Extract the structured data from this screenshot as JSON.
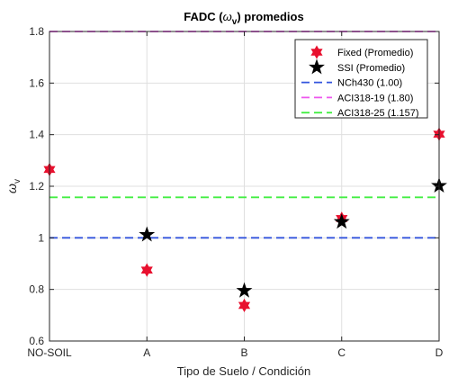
{
  "chart_data": {
    "type": "scatter",
    "title": {
      "main": "FADC (",
      "omega": "ω",
      "sub": "v",
      "tail": ") promedios"
    },
    "xlabel": "Tipo de Suelo / Condición",
    "ylabel": {
      "omega": "ω",
      "sub": "v"
    },
    "categories": [
      "NO-SOIL",
      "A",
      "B",
      "C",
      "D"
    ],
    "ylim": [
      0.6,
      1.8
    ],
    "yticks": [
      "0.6",
      "0.8",
      "1",
      "1.2",
      "1.4",
      "1.6",
      "1.8"
    ],
    "grid": true,
    "legend_position": "top-right",
    "series": [
      {
        "name": "Fixed (Promedio)",
        "marker": "hexagram",
        "color": "#e8102e",
        "values": [
          1.265,
          0.875,
          0.738,
          1.075,
          1.402
        ]
      },
      {
        "name": "SSI (Promedio)",
        "marker": "pentagram",
        "color": "#000000",
        "values": [
          null,
          1.012,
          0.795,
          1.062,
          1.202
        ]
      }
    ],
    "reference_lines": [
      {
        "name": "NCh430 (1.00)",
        "value": 1.0,
        "color": "#3355dd"
      },
      {
        "name": "ACI318-19 (1.80)",
        "value": 1.8,
        "color": "#ee55ee"
      },
      {
        "name": "ACI318-25 (1.157)",
        "value": 1.157,
        "color": "#44ee44"
      }
    ]
  }
}
